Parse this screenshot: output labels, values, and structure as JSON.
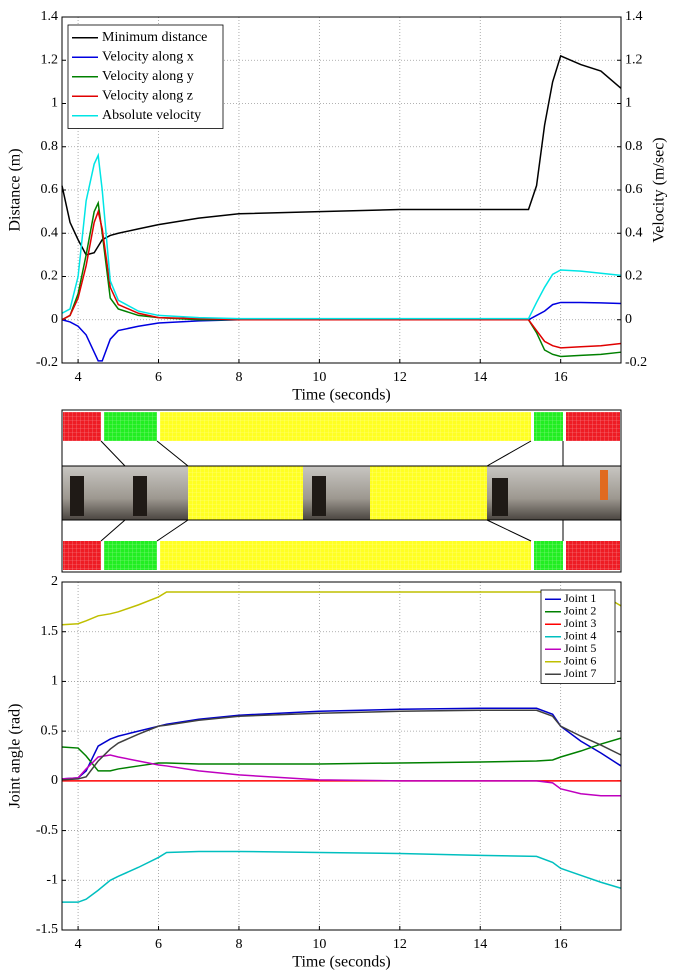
{
  "chart_data": [
    {
      "type": "line",
      "xlabel": "Time (seconds)",
      "ylabel": "Distance (m)",
      "y2label": "Velocity (m/sec)",
      "x": [
        3.6,
        3.8,
        4.0,
        4.2,
        4.4,
        4.5,
        4.6,
        4.8,
        5.0,
        5.5,
        6,
        7,
        8,
        10,
        12,
        14,
        15.2,
        15.4,
        15.6,
        15.8,
        16,
        16.5,
        17,
        17.5
      ],
      "xlim": [
        3.6,
        17.5
      ],
      "xticks": [
        4,
        6,
        8,
        10,
        12,
        14,
        16
      ],
      "ylim": [
        -0.2,
        1.4
      ],
      "yticks": [
        -0.2,
        0,
        0.2,
        0.4,
        0.6,
        0.8,
        1,
        1.2,
        1.4
      ],
      "y2lim": [
        -0.2,
        1.4
      ],
      "y2ticks": [
        -0.2,
        0,
        0.2,
        0.4,
        0.6,
        0.8,
        1,
        1.2,
        1.4
      ],
      "grid": true,
      "legend": "upper left",
      "series": [
        {
          "name": "Minimum distance",
          "color": "#000000",
          "values": [
            0.62,
            0.45,
            0.37,
            0.3,
            0.31,
            0.34,
            0.37,
            0.39,
            0.4,
            0.42,
            0.44,
            0.47,
            0.49,
            0.5,
            0.51,
            0.51,
            0.51,
            0.62,
            0.9,
            1.1,
            1.22,
            1.18,
            1.15,
            1.07
          ]
        },
        {
          "name": "Velocity along x",
          "color": "#0000e0",
          "axis": "y2",
          "values": [
            0,
            -0.01,
            -0.03,
            -0.07,
            -0.15,
            -0.19,
            -0.19,
            -0.09,
            -0.05,
            -0.03,
            -0.015,
            -0.005,
            0,
            0,
            0,
            0,
            0,
            0.02,
            0.04,
            0.07,
            0.08,
            0.08,
            0.078,
            0.075
          ]
        },
        {
          "name": "Velocity along y",
          "color": "#008000",
          "axis": "y2",
          "values": [
            0,
            0.02,
            0.12,
            0.3,
            0.5,
            0.54,
            0.4,
            0.1,
            0.05,
            0.02,
            0.01,
            0,
            0,
            0,
            0,
            0,
            0,
            -0.06,
            -0.14,
            -0.16,
            -0.17,
            -0.165,
            -0.16,
            -0.15
          ]
        },
        {
          "name": "Velocity along z",
          "color": "#e00000",
          "axis": "y2",
          "values": [
            0,
            0.02,
            0.1,
            0.25,
            0.45,
            0.5,
            0.42,
            0.15,
            0.07,
            0.03,
            0.01,
            0.005,
            0,
            0,
            0,
            0,
            0,
            -0.05,
            -0.1,
            -0.12,
            -0.13,
            -0.125,
            -0.12,
            -0.11
          ]
        },
        {
          "name": "Absolute velocity",
          "color": "#00e5e5",
          "axis": "y2",
          "values": [
            0.03,
            0.05,
            0.2,
            0.55,
            0.72,
            0.76,
            0.6,
            0.18,
            0.09,
            0.04,
            0.02,
            0.01,
            0.005,
            0.005,
            0.005,
            0.005,
            0.005,
            0.08,
            0.15,
            0.21,
            0.23,
            0.225,
            0.215,
            0.205
          ]
        }
      ]
    },
    {
      "type": "line",
      "xlabel": "Time (seconds)",
      "ylabel": "Joint angle (rad)",
      "x": [
        3.6,
        4,
        4.2,
        4.5,
        4.8,
        5,
        5.5,
        6,
        6.2,
        7,
        8,
        10,
        12,
        14,
        15.4,
        15.8,
        16,
        16.5,
        17,
        17.5
      ],
      "xlim": [
        3.6,
        17.5
      ],
      "xticks": [
        4,
        6,
        8,
        10,
        12,
        14,
        16
      ],
      "ylim": [
        -1.5,
        2
      ],
      "yticks": [
        -1.5,
        -1,
        -0.5,
        0,
        0.5,
        1,
        1.5,
        2
      ],
      "grid": true,
      "legend": "upper right",
      "series": [
        {
          "name": "Joint 1",
          "color": "#0000cc",
          "values": [
            0.02,
            0.03,
            0.1,
            0.35,
            0.42,
            0.45,
            0.5,
            0.55,
            0.57,
            0.62,
            0.66,
            0.7,
            0.72,
            0.73,
            0.73,
            0.67,
            0.55,
            0.4,
            0.28,
            0.15
          ]
        },
        {
          "name": "Joint 2",
          "color": "#008000",
          "values": [
            0.34,
            0.33,
            0.25,
            0.1,
            0.1,
            0.12,
            0.15,
            0.18,
            0.18,
            0.17,
            0.17,
            0.17,
            0.18,
            0.19,
            0.2,
            0.21,
            0.24,
            0.3,
            0.37,
            0.43
          ]
        },
        {
          "name": "Joint 3",
          "color": "#ff0000",
          "values": [
            0,
            0,
            0,
            0,
            0,
            0,
            0,
            0,
            0,
            0,
            0,
            0,
            0,
            0,
            0,
            0,
            0,
            0,
            0,
            0
          ]
        },
        {
          "name": "Joint 4",
          "color": "#00bfbf",
          "values": [
            -1.22,
            -1.22,
            -1.19,
            -1.1,
            -1.0,
            -0.96,
            -0.87,
            -0.77,
            -0.72,
            -0.71,
            -0.71,
            -0.72,
            -0.73,
            -0.75,
            -0.76,
            -0.82,
            -0.88,
            -0.95,
            -1.02,
            -1.08
          ]
        },
        {
          "name": "Joint 5",
          "color": "#bf00bf",
          "values": [
            0.02,
            0.03,
            0.12,
            0.24,
            0.26,
            0.24,
            0.2,
            0.16,
            0.15,
            0.1,
            0.06,
            0.01,
            0,
            0,
            0,
            -0.02,
            -0.08,
            -0.13,
            -0.15,
            -0.15
          ]
        },
        {
          "name": "Joint 6",
          "color": "#bfbf00",
          "values": [
            1.57,
            1.58,
            1.61,
            1.66,
            1.68,
            1.7,
            1.77,
            1.85,
            1.9,
            1.9,
            1.9,
            1.9,
            1.9,
            1.9,
            1.9,
            1.9,
            1.9,
            1.9,
            1.88,
            1.76
          ]
        },
        {
          "name": "Joint 7",
          "color": "#404040",
          "values": [
            0.01,
            0.02,
            0.04,
            0.2,
            0.32,
            0.38,
            0.47,
            0.55,
            0.56,
            0.61,
            0.65,
            0.68,
            0.7,
            0.71,
            0.71,
            0.65,
            0.55,
            0.45,
            0.36,
            0.26
          ]
        }
      ]
    }
  ]
}
